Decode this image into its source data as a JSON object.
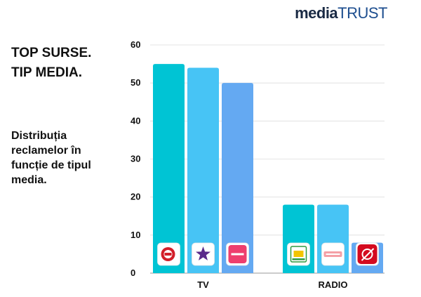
{
  "brand": {
    "part1": "media",
    "part2": "TRUST"
  },
  "title": {
    "line1": "TOP SURSE.",
    "line2": "TIP MEDIA."
  },
  "description": "Distribuția reclamelor în funcție de tipul media.",
  "chart_data": {
    "type": "bar",
    "categories": [
      "TV",
      "RADIO"
    ],
    "ylim": [
      0,
      60
    ],
    "yticks": [
      0,
      10,
      20,
      30,
      40,
      50,
      60
    ],
    "grid": true,
    "groups": [
      {
        "category": "TV",
        "bars": [
          {
            "value": 55,
            "color": "#00c4d4",
            "icon": "kiss-tv-logo-icon"
          },
          {
            "value": 54,
            "color": "#47c4f5",
            "icon": "star-channel-logo-icon"
          },
          {
            "value": 50,
            "color": "#64a9f2",
            "icon": "acasa-logo-icon"
          }
        ]
      },
      {
        "category": "RADIO",
        "bars": [
          {
            "value": 18,
            "color": "#00c4d4",
            "icon": "zu-radio-logo-icon"
          },
          {
            "value": 18,
            "color": "#47c4f5",
            "icon": "impuls-radio-logo-icon"
          },
          {
            "value": 8,
            "color": "#64a9f2",
            "icon": "virgin-radio-logo-icon"
          }
        ]
      }
    ]
  }
}
